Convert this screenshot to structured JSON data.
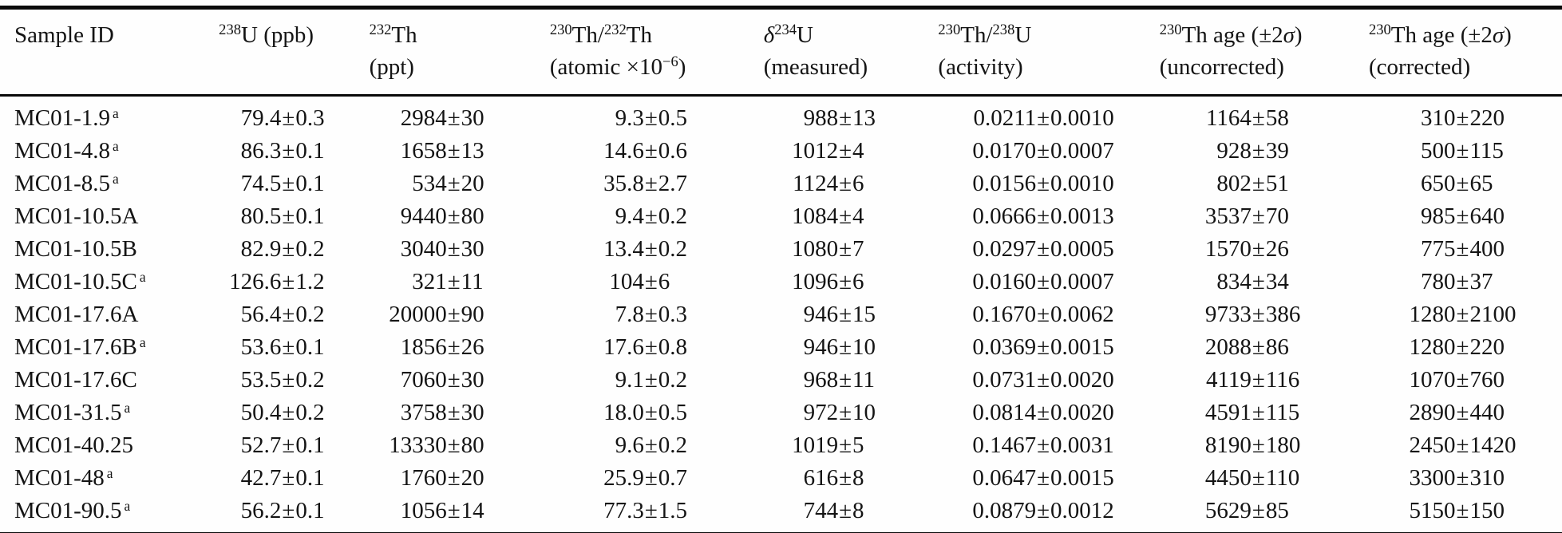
{
  "table": {
    "columns": [
      {
        "id": "sample-id",
        "align": "left",
        "line1": [
          {
            "t": "Sample ID"
          }
        ],
        "line2": []
      },
      {
        "id": "u238-ppb",
        "line1": [
          {
            "t": "238",
            "sup": true
          },
          {
            "t": "U (ppb)"
          }
        ],
        "line2": []
      },
      {
        "id": "th232-ppt",
        "line1": [
          {
            "t": "232",
            "sup": true
          },
          {
            "t": "Th"
          }
        ],
        "line2": [
          {
            "t": "(ppt)"
          }
        ]
      },
      {
        "id": "th230-th232-atomic",
        "line1": [
          {
            "t": "230",
            "sup": true
          },
          {
            "t": "Th/"
          },
          {
            "t": "232",
            "sup": true
          },
          {
            "t": "Th"
          }
        ],
        "line2": [
          {
            "t": "(atomic ×10"
          },
          {
            "t": "−6",
            "sup": true
          },
          {
            "t": ")"
          }
        ]
      },
      {
        "id": "d234u-measured",
        "line1": [
          {
            "t": "δ",
            "i": true
          },
          {
            "t": "234",
            "sup": true
          },
          {
            "t": "U"
          }
        ],
        "line2": [
          {
            "t": "(measured)"
          }
        ]
      },
      {
        "id": "th230-u238-activity",
        "line1": [
          {
            "t": "230",
            "sup": true
          },
          {
            "t": "Th/"
          },
          {
            "t": "238",
            "sup": true
          },
          {
            "t": "U"
          }
        ],
        "line2": [
          {
            "t": "(activity)"
          }
        ]
      },
      {
        "id": "th230-age-uncorrected",
        "line1": [
          {
            "t": "230",
            "sup": true
          },
          {
            "t": "Th age (±2"
          },
          {
            "t": "σ",
            "i": true
          },
          {
            "t": ")"
          }
        ],
        "line2": [
          {
            "t": "(uncorrected)"
          }
        ]
      },
      {
        "id": "th230-age-corrected",
        "line1": [
          {
            "t": "230",
            "sup": true
          },
          {
            "t": "Th age (±2"
          },
          {
            "t": "σ",
            "i": true
          },
          {
            "t": ")"
          }
        ],
        "line2": [
          {
            "t": "(corrected)"
          }
        ]
      }
    ],
    "rows": [
      {
        "id": "MC01-1.9",
        "flag": "a",
        "cells": [
          "79.4±0.3",
          "2984±30",
          "9.3±0.5",
          "988±13",
          "0.0211±0.0010",
          "1164±58",
          "310±220"
        ]
      },
      {
        "id": "MC01-4.8",
        "flag": "a",
        "cells": [
          "86.3±0.1",
          "1658±13",
          "14.6±0.6",
          "1012±4",
          "0.0170±0.0007",
          "928±39",
          "500±115"
        ]
      },
      {
        "id": "MC01-8.5",
        "flag": "a",
        "cells": [
          "74.5±0.1",
          "534±20",
          "35.8±2.7",
          "1124±6",
          "0.0156±0.0010",
          "802±51",
          "650±65"
        ]
      },
      {
        "id": "MC01-10.5A",
        "flag": "",
        "cells": [
          "80.5±0.1",
          "9440±80",
          "9.4±0.2",
          "1084±4",
          "0.0666±0.0013",
          "3537±70",
          "985±640"
        ]
      },
      {
        "id": "MC01-10.5B",
        "flag": "",
        "cells": [
          "82.9±0.2",
          "3040±30",
          "13.4±0.2",
          "1080±7",
          "0.0297±0.0005",
          "1570±26",
          "775±400"
        ]
      },
      {
        "id": "MC01-10.5C",
        "flag": "a",
        "cells": [
          "126.6±1.2",
          "321±11",
          "104±6",
          "1096±6",
          "0.0160±0.0007",
          "834±34",
          "780±37"
        ]
      },
      {
        "id": "MC01-17.6A",
        "flag": "",
        "cells": [
          "56.4±0.2",
          "20000±90",
          "7.8±0.3",
          "946±15",
          "0.1670±0.0062",
          "9733±386",
          "1280±2100"
        ]
      },
      {
        "id": "MC01-17.6B",
        "flag": "a",
        "cells": [
          "53.6±0.1",
          "1856±26",
          "17.6±0.8",
          "946±10",
          "0.0369±0.0015",
          "2088±86",
          "1280±220"
        ]
      },
      {
        "id": "MC01-17.6C",
        "flag": "",
        "cells": [
          "53.5±0.2",
          "7060±30",
          "9.1±0.2",
          "968±11",
          "0.0731±0.0020",
          "4119±116",
          "1070±760"
        ]
      },
      {
        "id": "MC01-31.5",
        "flag": "a",
        "cells": [
          "50.4±0.2",
          "3758±30",
          "18.0±0.5",
          "972±10",
          "0.0814±0.0020",
          "4591±115",
          "2890±440"
        ]
      },
      {
        "id": "MC01-40.25",
        "flag": "",
        "cells": [
          "52.7±0.1",
          "13330±80",
          "9.6±0.2",
          "1019±5",
          "0.1467±0.0031",
          "8190±180",
          "2450±1420"
        ]
      },
      {
        "id": "MC01-48",
        "flag": "a",
        "cells": [
          "42.7±0.1",
          "1760±20",
          "25.9±0.7",
          "616±8",
          "0.0647±0.0015",
          "4450±110",
          "3300±310"
        ]
      },
      {
        "id": "MC01-90.5",
        "flag": "a",
        "cells": [
          "56.2±0.1",
          "1056±14",
          "77.3±1.5",
          "744±8",
          "0.0879±0.0012",
          "5629±85",
          "5150±150"
        ]
      }
    ]
  }
}
